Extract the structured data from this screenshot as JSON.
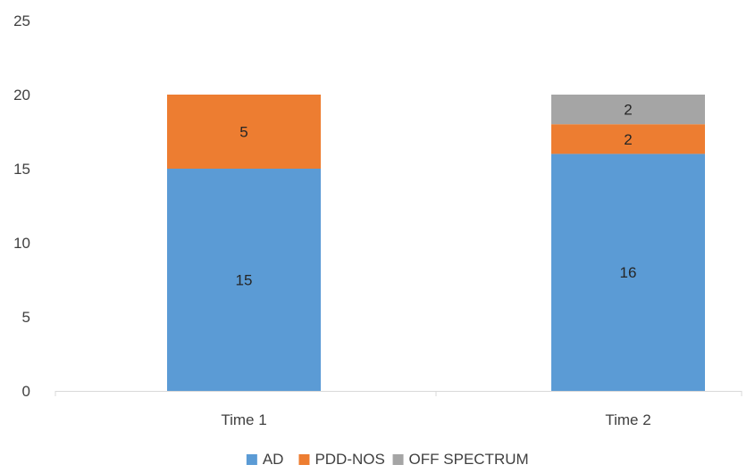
{
  "chart_data": {
    "type": "bar",
    "stacked": true,
    "categories": [
      "Time 1",
      "Time 2"
    ],
    "series": [
      {
        "name": "AD",
        "values": [
          15,
          16
        ],
        "color": "#5b9bd5"
      },
      {
        "name": "PDD-NOS",
        "values": [
          5,
          2
        ],
        "color": "#ed7d31"
      },
      {
        "name": "OFF SPECTRUM",
        "values": [
          0,
          2
        ],
        "color": "#a5a5a5"
      }
    ],
    "ylim": [
      0,
      25
    ],
    "yticks": [
      0,
      5,
      10,
      15,
      20,
      25
    ],
    "grid": false,
    "legend": "bottom"
  }
}
